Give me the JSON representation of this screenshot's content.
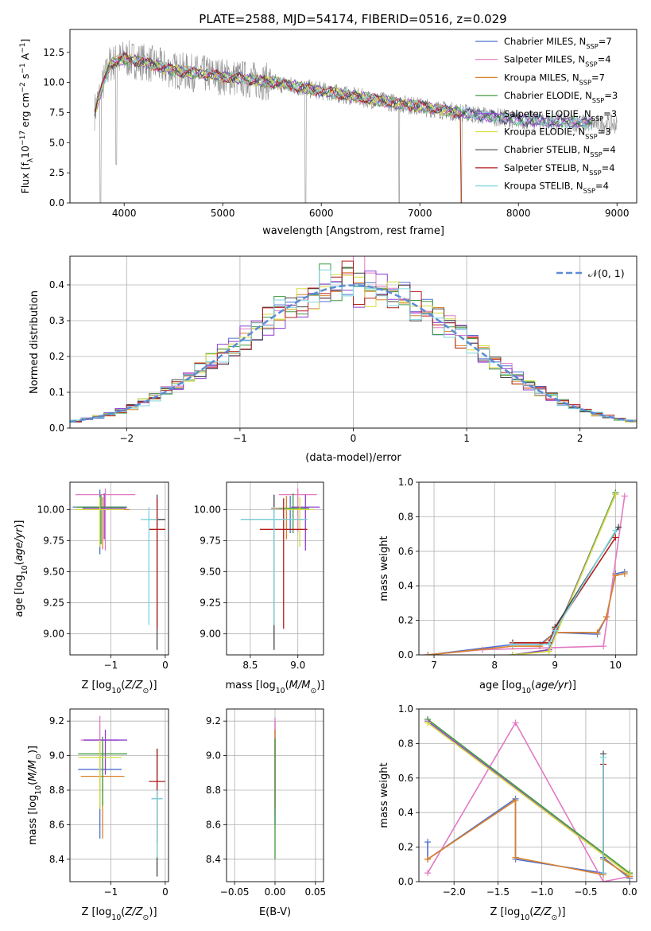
{
  "figure": {
    "title": "PLATE=2588, MJD=54174, FIBERID=0516, z=0.029"
  },
  "legend_series": [
    {
      "label": "Chabrier MILES, N",
      "sub": "SSP",
      "suffix": "=7",
      "color": "#4f70d0"
    },
    {
      "label": "Salpeter MILES, N",
      "sub": "SSP",
      "suffix": "=4",
      "color": "#e37ac3"
    },
    {
      "label": "Kroupa MILES, N",
      "sub": "SSP",
      "suffix": "=7",
      "color": "#d9822b"
    },
    {
      "label": "Chabrier ELODIE, N",
      "sub": "SSP",
      "suffix": "=3",
      "color": "#3e9a3e"
    },
    {
      "label": "Salpeter ELODIE, N",
      "sub": "SSP",
      "suffix": "=3",
      "color": "#8d3fd0"
    },
    {
      "label": "Kroupa ELODIE, N",
      "sub": "SSP",
      "suffix": "=3",
      "color": "#d4dc3c"
    },
    {
      "label": "Chabrier STELIB, N",
      "sub": "SSP",
      "suffix": "=4",
      "color": "#444444"
    },
    {
      "label": "Salpeter STELIB, N",
      "sub": "SSP",
      "suffix": "=4",
      "color": "#b31c1c"
    },
    {
      "label": "Kroupa STELIB, N",
      "sub": "SSP",
      "suffix": "=4",
      "color": "#7fd6dd"
    }
  ],
  "chart_data": [
    {
      "id": "spectrum",
      "type": "line",
      "xlabel": "wavelength [Angstrom, rest frame]",
      "ylabel": "Flux [f",
      "xlim": [
        3450,
        9200
      ],
      "ylim": [
        0,
        14.4
      ],
      "xticks": [
        4000,
        5000,
        6000,
        7000,
        8000,
        9000
      ],
      "yticks": [
        0.0,
        2.5,
        5.0,
        7.5,
        10.0,
        12.5
      ],
      "data_color": "#8c8c8c",
      "model_color": "#7fd6dd",
      "continuum": [
        [
          3700,
          7.6
        ],
        [
          3850,
          11.5
        ],
        [
          4000,
          12.0
        ],
        [
          4200,
          11.7
        ],
        [
          4500,
          11.0
        ],
        [
          5000,
          10.5
        ],
        [
          5500,
          10.0
        ],
        [
          6000,
          9.3
        ],
        [
          6500,
          8.6
        ],
        [
          7000,
          8.0
        ],
        [
          7500,
          7.4
        ],
        [
          8000,
          6.9
        ],
        [
          8500,
          6.7
        ],
        [
          9000,
          6.5
        ]
      ],
      "dips": [
        [
          3760,
          0
        ],
        [
          3920,
          3.2
        ],
        [
          5840,
          0
        ],
        [
          6790,
          0
        ],
        [
          7420,
          0
        ]
      ]
    },
    {
      "id": "residuals",
      "type": "histogram",
      "xlabel": "(data-model)/error",
      "ylabel": "Normed distribution",
      "xlim": [
        -2.5,
        2.5
      ],
      "ylim": [
        0,
        0.48
      ],
      "xticks": [
        -2,
        -1,
        0,
        1,
        2
      ],
      "yticks": [
        0.0,
        0.1,
        0.2,
        0.3,
        0.4
      ],
      "gaussian_label": "𝒩(0, 1)",
      "gaussian_color": "#5b8bd6",
      "bin_width": 0.1
    },
    {
      "id": "age_vs_Z",
      "type": "scatter",
      "xlabel": "Z [log",
      "ylabel": "age  [log",
      "xlim": [
        -1.75,
        0.06
      ],
      "ylim": [
        8.83,
        10.22
      ],
      "xticks": [
        -1,
        0
      ],
      "yticks": [
        9.0,
        9.25,
        9.5,
        9.75,
        10.0
      ],
      "points": [
        {
          "x": -1.2,
          "y": 10.02,
          "xerr": 0.5,
          "yerr_lo": 0.38,
          "yerr_hi": 0.14
        },
        {
          "x": -1.1,
          "y": 10.12,
          "xerr": 0.55,
          "yerr_lo": 0.45,
          "yerr_hi": 0.05
        },
        {
          "x": -1.15,
          "y": 10.0,
          "xerr": 0.5,
          "yerr_lo": 0.32,
          "yerr_hi": 0.1
        },
        {
          "x": -1.18,
          "y": 10.02,
          "xerr": 0.45,
          "yerr_lo": 0.3,
          "yerr_hi": 0.1
        },
        {
          "x": -1.12,
          "y": 10.01,
          "xerr": 0.4,
          "yerr_lo": 0.25,
          "yerr_hi": 0.12
        },
        {
          "x": -1.2,
          "y": 10.0,
          "xerr": 0.45,
          "yerr_lo": 0.3,
          "yerr_hi": 0.1
        },
        {
          "x": -0.15,
          "y": 9.92,
          "xerr": 0.15,
          "yerr_lo": 1.05,
          "yerr_hi": 0.2
        },
        {
          "x": -0.15,
          "y": 9.84,
          "xerr": 0.15,
          "yerr_lo": 0.8,
          "yerr_hi": 0.25
        },
        {
          "x": -0.3,
          "y": 9.92,
          "xerr": 0.15,
          "yerr_lo": 0.85,
          "yerr_hi": 0.1
        }
      ]
    },
    {
      "id": "age_vs_mass",
      "type": "scatter",
      "xlabel": "mass [log",
      "ylabel": "",
      "xlim": [
        8.25,
        9.27
      ],
      "ylim": [
        8.83,
        10.22
      ],
      "xticks": [
        8.5,
        9.0
      ],
      "yticks": [
        9.0,
        9.25,
        9.5,
        9.75,
        10.0
      ],
      "points": [
        {
          "x": 8.92,
          "y": 10.01,
          "xerr": 0.2,
          "yerr_lo": 0.2,
          "yerr_hi": 0.1
        },
        {
          "x": 9.0,
          "y": 10.12,
          "xerr": 0.2,
          "yerr_lo": 0.3,
          "yerr_hi": 0.05
        },
        {
          "x": 8.88,
          "y": 10.01,
          "xerr": 0.15,
          "yerr_lo": 0.25,
          "yerr_hi": 0.1
        },
        {
          "x": 8.95,
          "y": 10.01,
          "xerr": 0.15,
          "yerr_lo": 0.2,
          "yerr_hi": 0.12
        },
        {
          "x": 9.08,
          "y": 10.02,
          "xerr": 0.15,
          "yerr_lo": 0.35,
          "yerr_hi": 0.1
        },
        {
          "x": 9.02,
          "y": 10.0,
          "xerr": 0.15,
          "yerr_lo": 0.3,
          "yerr_hi": 0.1
        },
        {
          "x": 8.75,
          "y": 9.92,
          "xerr": 0.35,
          "yerr_lo": 1.05,
          "yerr_hi": 0.2
        },
        {
          "x": 8.85,
          "y": 9.84,
          "xerr": 0.25,
          "yerr_lo": 0.8,
          "yerr_hi": 0.25
        },
        {
          "x": 8.75,
          "y": 9.92,
          "xerr": 0.35,
          "yerr_lo": 0.85,
          "yerr_hi": 0.1
        }
      ]
    },
    {
      "id": "weight_vs_age",
      "type": "line",
      "xlabel": "age  [log",
      "ylabel": "mass weight",
      "xlim": [
        6.75,
        10.35
      ],
      "ylim": [
        0,
        1.0
      ],
      "xticks": [
        7,
        8,
        9,
        10
      ],
      "yticks": [
        0.0,
        0.2,
        0.4,
        0.6,
        0.8,
        1.0
      ],
      "series": [
        {
          "x": [
            6.9,
            8.3,
            8.75,
            9.0,
            9.7,
            9.85,
            10.0,
            10.15
          ],
          "y": [
            0.0,
            0.06,
            0.06,
            0.13,
            0.12,
            0.22,
            0.47,
            0.48
          ]
        },
        {
          "x": [
            6.9,
            7.8,
            9.8,
            10.15
          ],
          "y": [
            0.0,
            0.03,
            0.05,
            0.92
          ]
        },
        {
          "x": [
            6.9,
            8.3,
            8.75,
            9.0,
            9.7,
            9.85,
            10.0,
            10.15
          ],
          "y": [
            0.0,
            0.05,
            0.05,
            0.13,
            0.13,
            0.22,
            0.46,
            0.47
          ]
        },
        {
          "x": [
            8.3,
            8.9,
            10.0
          ],
          "y": [
            0.0,
            0.03,
            0.94
          ]
        },
        {
          "x": [
            8.3,
            8.9,
            10.0
          ],
          "y": [
            0.0,
            0.03,
            0.93
          ]
        },
        {
          "x": [
            8.3,
            8.9,
            10.0
          ],
          "y": [
            0.0,
            0.02,
            0.93
          ]
        },
        {
          "x": [
            8.3,
            8.9,
            9.0,
            10.05
          ],
          "y": [
            0.07,
            0.07,
            0.16,
            0.74
          ]
        },
        {
          "x": [
            8.3,
            8.9,
            9.0,
            10.0
          ],
          "y": [
            0.07,
            0.07,
            0.15,
            0.68
          ]
        },
        {
          "x": [
            8.3,
            8.9,
            9.0,
            10.0
          ],
          "y": [
            0.06,
            0.06,
            0.14,
            0.72
          ]
        }
      ]
    },
    {
      "id": "mass_vs_Z",
      "type": "scatter",
      "xlabel": "Z [log",
      "ylabel": "mass [log",
      "xlim": [
        -1.75,
        0.06
      ],
      "ylim": [
        8.27,
        9.27
      ],
      "xticks": [
        -1,
        0
      ],
      "yticks": [
        8.4,
        8.6,
        8.8,
        9.0,
        9.2
      ],
      "points": [
        {
          "x": -1.2,
          "y": 8.92,
          "xerr": 0.4,
          "yerr_lo": 0.4,
          "yerr_hi": 0.1
        },
        {
          "x": -1.2,
          "y": 9.09,
          "xerr": 0.35,
          "yerr_lo": 0.2,
          "yerr_hi": 0.14
        },
        {
          "x": -1.15,
          "y": 8.88,
          "xerr": 0.4,
          "yerr_lo": 0.36,
          "yerr_hi": 0.2
        },
        {
          "x": -1.15,
          "y": 9.01,
          "xerr": 0.45,
          "yerr_lo": 0.3,
          "yerr_hi": 0.1
        },
        {
          "x": -1.1,
          "y": 9.09,
          "xerr": 0.4,
          "yerr_lo": 0.2,
          "yerr_hi": 0.06
        },
        {
          "x": -1.2,
          "y": 8.99,
          "xerr": 0.4,
          "yerr_lo": 0.3,
          "yerr_hi": 0.1
        },
        {
          "x": -0.15,
          "y": 8.75,
          "xerr": 0.1,
          "yerr_lo": 0.45,
          "yerr_hi": 0.29
        },
        {
          "x": -0.15,
          "y": 8.85,
          "xerr": 0.15,
          "yerr_lo": 0.35,
          "yerr_hi": 0.19
        },
        {
          "x": -0.15,
          "y": 8.75,
          "xerr": 0.1,
          "yerr_lo": 0.34,
          "yerr_hi": 0.05
        }
      ]
    },
    {
      "id": "mass_vs_ebv",
      "type": "scatter",
      "xlabel": "E(B-V)",
      "ylabel": "",
      "xlim": [
        -0.06,
        0.06
      ],
      "ylim": [
        8.27,
        9.27
      ],
      "xticks": [
        -0.05,
        0.0,
        0.05
      ],
      "yticks": [
        8.4,
        8.6,
        8.8,
        9.0,
        9.2
      ],
      "points": [
        {
          "x": 0.0,
          "y": 8.95,
          "yerr_lo": 0.35,
          "yerr_hi": 0.25
        },
        {
          "x": 0.0,
          "y": 9.1,
          "yerr_lo": 0.45,
          "yerr_hi": 0.12
        },
        {
          "x": 0.0,
          "y": 9.0,
          "yerr_lo": 0.3,
          "yerr_hi": 0.15
        },
        {
          "x": 0.0,
          "y": 8.9,
          "yerr_lo": 0.5,
          "yerr_hi": 0.2
        }
      ]
    },
    {
      "id": "weight_vs_Z",
      "type": "line",
      "xlabel": "Z [log",
      "ylabel": "mass weight",
      "xlim": [
        -2.4,
        0.08
      ],
      "ylim": [
        0,
        1.0
      ],
      "xticks": [
        -2.0,
        -1.5,
        -1.0,
        -0.5,
        0.0
      ],
      "yticks": [
        0.0,
        0.2,
        0.4,
        0.6,
        0.8,
        1.0
      ],
      "series": [
        {
          "x": [
            -2.3,
            -2.3,
            -1.3,
            -1.3,
            -0.3,
            -0.3,
            0.0
          ],
          "y": [
            0.23,
            0.13,
            0.48,
            0.13,
            0.05,
            0.14,
            0.02
          ]
        },
        {
          "x": [
            -2.3,
            -1.3,
            -0.3,
            0.0
          ],
          "y": [
            0.05,
            0.92,
            0.0,
            0.03
          ]
        },
        {
          "x": [
            -2.3,
            -2.3,
            -1.3,
            -1.3,
            -0.3,
            -0.3,
            0.0
          ],
          "y": [
            0.13,
            0.13,
            0.47,
            0.14,
            0.04,
            0.13,
            0.03
          ]
        },
        {
          "x": [
            -2.3,
            0.0
          ],
          "y": [
            0.94,
            0.05
          ]
        },
        {
          "x": [
            -2.3,
            0.0
          ],
          "y": [
            0.93,
            0.04
          ]
        },
        {
          "x": [
            -2.3,
            0.0
          ],
          "y": [
            0.92,
            0.04
          ]
        },
        {
          "x": [
            -0.3,
            -0.3
          ],
          "y": [
            0.74,
            0.05
          ]
        },
        {
          "x": [
            -0.3,
            -0.3
          ],
          "y": [
            0.68,
            0.05
          ]
        },
        {
          "x": [
            -0.3,
            -0.3
          ],
          "y": [
            0.72,
            0.05
          ]
        }
      ]
    }
  ]
}
